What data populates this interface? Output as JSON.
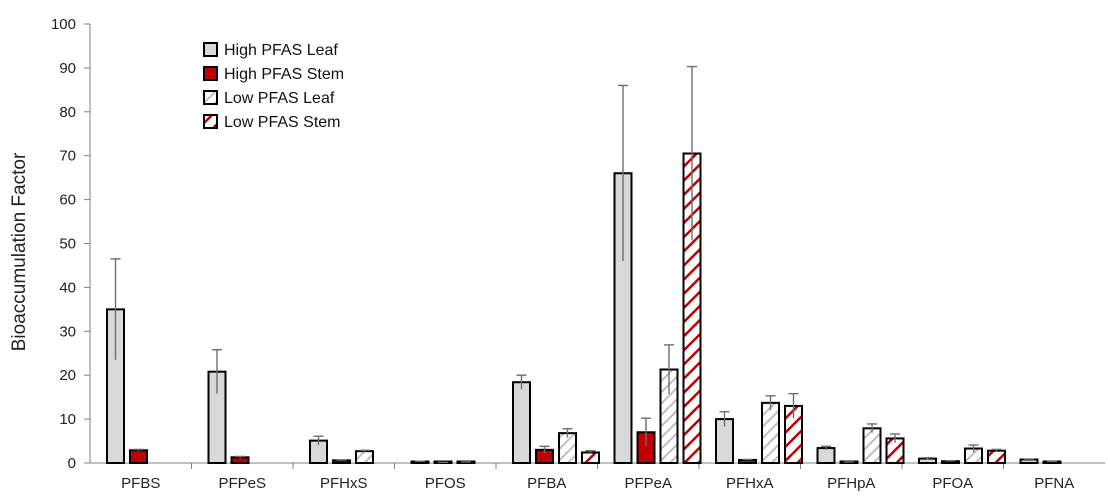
{
  "chart_data": {
    "type": "bar",
    "ylabel": "Bioaccumulation Factor",
    "xlabel": "",
    "ylim": [
      0,
      100
    ],
    "yticks": [
      0,
      10,
      20,
      30,
      40,
      50,
      60,
      70,
      80,
      90,
      100
    ],
    "grid": false,
    "legend_position": "top-left",
    "categories": [
      "PFBS",
      "PFPeS",
      "PFHxS",
      "PFOS",
      "PFBA",
      "PFPeA",
      "PFHxA",
      "PFHpA",
      "PFOA",
      "PFNA"
    ],
    "series": [
      {
        "name": "High PFAS Leaf",
        "style": "solid-gray",
        "color": "#d9d9d9",
        "values": [
          35.0,
          20.8,
          5.1,
          0.3,
          18.4,
          66.0,
          10.0,
          3.4,
          1.0,
          0.8
        ],
        "error": [
          11.5,
          5.0,
          1.0,
          0.1,
          1.6,
          20.0,
          1.7,
          0.4,
          0.2,
          0.1
        ]
      },
      {
        "name": "High PFAS Stem",
        "style": "solid-red",
        "color": "#c00000",
        "values": [
          2.9,
          1.3,
          0.6,
          0.1,
          3.0,
          7.0,
          0.7,
          0.2,
          0.4,
          0.3
        ],
        "error": [
          0.2,
          0.2,
          0.1,
          0.05,
          0.8,
          3.2,
          0.1,
          0.05,
          0.1,
          0.05
        ]
      },
      {
        "name": "Low PFAS Leaf",
        "style": "hatched-gray",
        "color": "#bfbfbf",
        "values": [
          null,
          null,
          2.7,
          0.2,
          6.8,
          21.3,
          13.7,
          7.9,
          3.3,
          null
        ],
        "error": [
          null,
          null,
          0.2,
          0.05,
          1.0,
          5.6,
          1.6,
          1.0,
          0.8,
          null
        ]
      },
      {
        "name": "Low PFAS Stem",
        "style": "hatched-red",
        "color": "#c00000",
        "values": [
          null,
          null,
          null,
          null,
          2.4,
          70.5,
          13.0,
          5.6,
          2.8,
          null
        ],
        "error": [
          null,
          null,
          null,
          null,
          0.4,
          19.8,
          2.8,
          1.0,
          0.3,
          null
        ]
      }
    ]
  }
}
